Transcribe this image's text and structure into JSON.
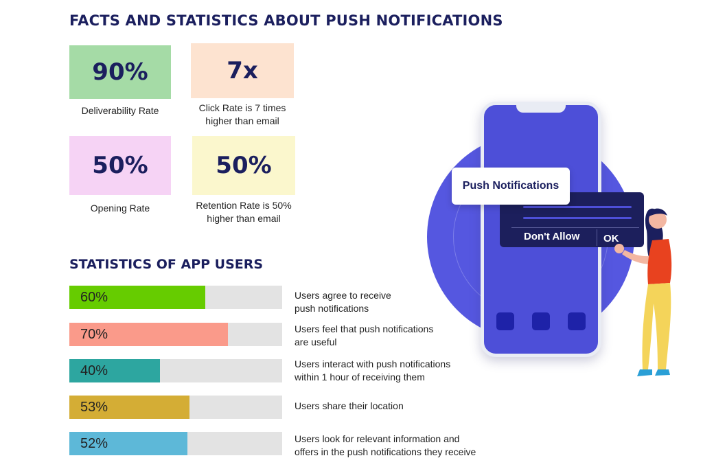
{
  "title": "FACTS AND STATISTICS ABOUT PUSH NOTIFICATIONS",
  "facts": [
    {
      "value": "90%",
      "caption": "Deliverability Rate",
      "color": "#a5dba6"
    },
    {
      "value": "7x",
      "caption": "Click Rate is 7 times higher than email",
      "color": "#fde3d0"
    },
    {
      "value": "50%",
      "caption": "Opening Rate",
      "color": "#f6d3f5"
    },
    {
      "value": "50%",
      "caption": "Retention Rate is 50% higher than email",
      "color": "#fbf7cd"
    }
  ],
  "app_stats": {
    "title": "STATISTICS OF APP USERS",
    "rows": [
      {
        "label": "60%",
        "value": 60,
        "color": "#66cc00",
        "description": "Users agree to receive push notifications"
      },
      {
        "label": "70%",
        "value": 70,
        "color": "#fa9a8a",
        "description": "Users feel that push notifications are useful"
      },
      {
        "label": "40%",
        "value": 40,
        "color": "#2da6a0",
        "description": "Users interact with push notifications within 1 hour of receiving them"
      },
      {
        "label": "53%",
        "value": 53,
        "color": "#d4ad35",
        "description": "Users share their location"
      },
      {
        "label": "52%",
        "value": 52,
        "color": "#5db8d8",
        "description": "Users look for relevant information and offers in the push notifications they receive"
      }
    ]
  },
  "illustration": {
    "push_label": "Push Notifications",
    "deny_label": "Don't Allow",
    "ok_label": "OK"
  }
}
